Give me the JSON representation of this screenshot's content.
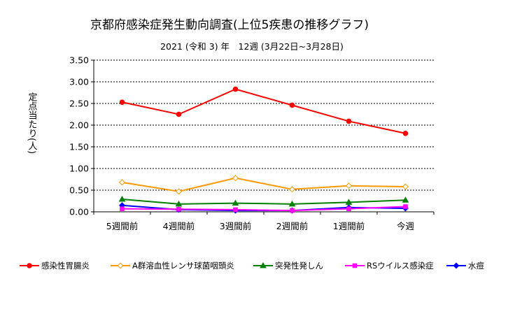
{
  "chart_data": {
    "type": "line",
    "title": "京都府感染症発生動向調査(上位5疾患の推移グラフ)",
    "subtitle": "2021 (令和 3) 年　12週 (3月22日~3月28日)",
    "ylabel": "定点当たり(人)",
    "xlabel": "",
    "categories": [
      "5週間前",
      "4週間前",
      "3週間前",
      "2週間前",
      "1週間前",
      "今週"
    ],
    "y_ticks": [
      "0.00",
      "0.50",
      "1.00",
      "1.50",
      "2.00",
      "2.50",
      "3.00",
      "3.50"
    ],
    "ylim": [
      0,
      3.5
    ],
    "grid": "horizontal-dashed",
    "legend_position": "bottom",
    "series": [
      {
        "name": "感染性胃腸炎",
        "color": "#ff0000",
        "marker": "circle",
        "values": [
          2.53,
          2.25,
          2.83,
          2.46,
          2.09,
          1.81
        ]
      },
      {
        "name": "A群溶血性レンサ球菌咽頭炎",
        "color": "#ff9900",
        "marker": "diamond",
        "values": [
          0.68,
          0.47,
          0.78,
          0.52,
          0.6,
          0.58
        ]
      },
      {
        "name": "突発性発しん",
        "color": "#008000",
        "marker": "triangle",
        "values": [
          0.29,
          0.18,
          0.2,
          0.18,
          0.22,
          0.27
        ]
      },
      {
        "name": "RSウイルス感染症",
        "color": "#ff00ff",
        "marker": "square",
        "values": [
          0.07,
          0.06,
          0.05,
          0.03,
          0.07,
          0.12
        ]
      },
      {
        "name": "水痘",
        "color": "#0000ff",
        "marker": "diamond",
        "values": [
          0.15,
          0.05,
          0.03,
          0.03,
          0.1,
          0.08
        ]
      }
    ]
  }
}
